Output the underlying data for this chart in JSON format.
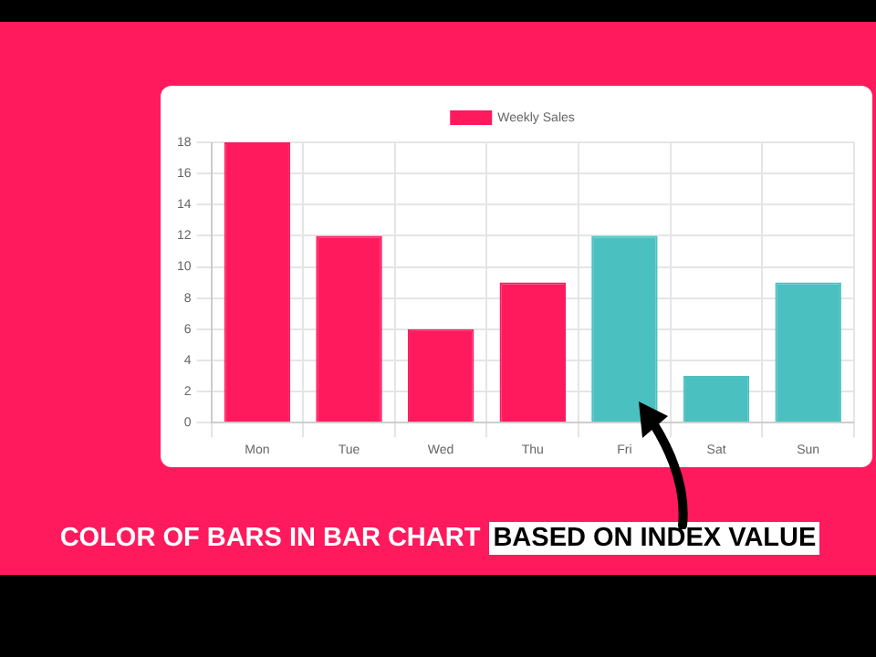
{
  "chart_data": {
    "type": "bar",
    "categories": [
      "Mon",
      "Tue",
      "Wed",
      "Thu",
      "Fri",
      "Sat",
      "Sun"
    ],
    "series": [
      {
        "name": "Weekly Sales",
        "values": [
          18,
          12,
          6,
          9,
          12,
          3,
          9
        ],
        "colors": [
          "#ff1a5e",
          "#ff1a5e",
          "#ff1a5e",
          "#ff1a5e",
          "#4bc0c0",
          "#4bc0c0",
          "#4bc0c0"
        ]
      }
    ],
    "ylim": [
      0,
      18
    ],
    "yticks": [
      0,
      2,
      4,
      6,
      8,
      10,
      12,
      14,
      16,
      18
    ],
    "grid": true,
    "legend": "top",
    "annotations": [
      "COLOR OF BARS IN BAR CHART",
      "BASED ON INDEX VALUE"
    ]
  }
}
